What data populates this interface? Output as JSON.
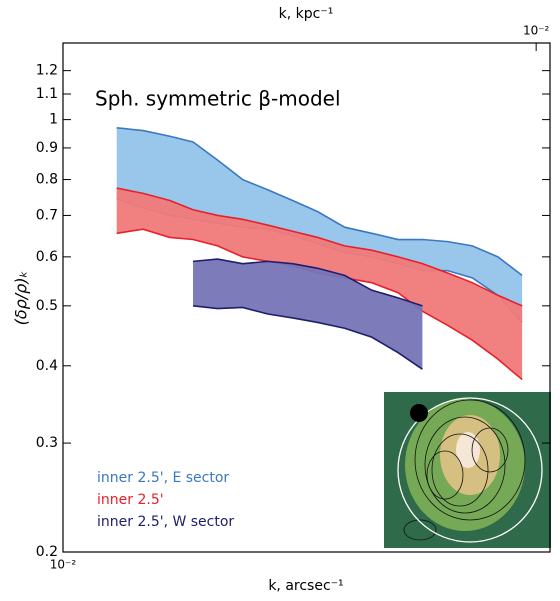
{
  "chart_data": {
    "type": "band",
    "title": "Sph. symmetric β-model",
    "x_label": "k, arcsec⁻¹",
    "y_label": "(δρ/ρ)ₖ",
    "x2_label": "k, kpc⁻¹",
    "log_x": true,
    "log_y": true,
    "xlim": [
      0.01,
      0.0157
    ],
    "xticks": [
      {
        "value": 0.01,
        "label": "10⁻²"
      }
    ],
    "x2ticks": [
      {
        "value": 0.0155,
        "label": "10⁻²"
      }
    ],
    "ylim": [
      0.2,
      1.33
    ],
    "yticks": [
      0.2,
      0.3,
      0.4,
      0.5,
      0.6,
      0.7,
      0.8,
      0.9,
      1.0,
      1.1,
      1.2
    ],
    "series": [
      {
        "name": "inner 2.5', E sector",
        "color": "#3a78c0",
        "fill": "#93c4ea",
        "x": [
          0.01051,
          0.01077,
          0.01104,
          0.01128,
          0.01154,
          0.01181,
          0.01209,
          0.01237,
          0.01266,
          0.01298,
          0.01331,
          0.01364,
          0.01395,
          0.01428,
          0.01461,
          0.01496,
          0.0153
        ],
        "upper": [
          0.97,
          0.96,
          0.94,
          0.92,
          0.86,
          0.8,
          0.77,
          0.74,
          0.71,
          0.67,
          0.655,
          0.64,
          0.64,
          0.635,
          0.625,
          0.6,
          0.56
        ],
        "lower": [
          0.745,
          0.72,
          0.7,
          0.69,
          0.68,
          0.67,
          0.665,
          0.65,
          0.63,
          0.61,
          0.6,
          0.585,
          0.57,
          0.57,
          0.555,
          0.52,
          0.47
        ]
      },
      {
        "name": "inner 2.5'",
        "color": "#e8202a",
        "fill": "#f07a7a",
        "x": [
          0.01051,
          0.01077,
          0.01104,
          0.01128,
          0.01154,
          0.01181,
          0.01209,
          0.01237,
          0.01266,
          0.01298,
          0.01331,
          0.01364,
          0.01395,
          0.01428,
          0.01461,
          0.01496,
          0.0153
        ],
        "upper": [
          0.775,
          0.76,
          0.74,
          0.715,
          0.7,
          0.69,
          0.675,
          0.66,
          0.645,
          0.625,
          0.615,
          0.6,
          0.585,
          0.565,
          0.545,
          0.52,
          0.5
        ],
        "lower": [
          0.655,
          0.665,
          0.645,
          0.64,
          0.625,
          0.6,
          0.59,
          0.58,
          0.565,
          0.555,
          0.545,
          0.525,
          0.49,
          0.465,
          0.44,
          0.41,
          0.38
        ]
      },
      {
        "name": "inner 2.5', W sector",
        "color": "#1e1e6e",
        "fill": "#7674b6",
        "x": [
          0.01128,
          0.01154,
          0.01181,
          0.01209,
          0.01237,
          0.01266,
          0.01298,
          0.01331,
          0.01364,
          0.01395
        ],
        "upper": [
          0.59,
          0.595,
          0.585,
          0.59,
          0.585,
          0.575,
          0.56,
          0.53,
          0.515,
          0.5
        ],
        "lower": [
          0.5,
          0.495,
          0.497,
          0.485,
          0.478,
          0.47,
          0.46,
          0.445,
          0.42,
          0.395
        ]
      }
    ]
  }
}
